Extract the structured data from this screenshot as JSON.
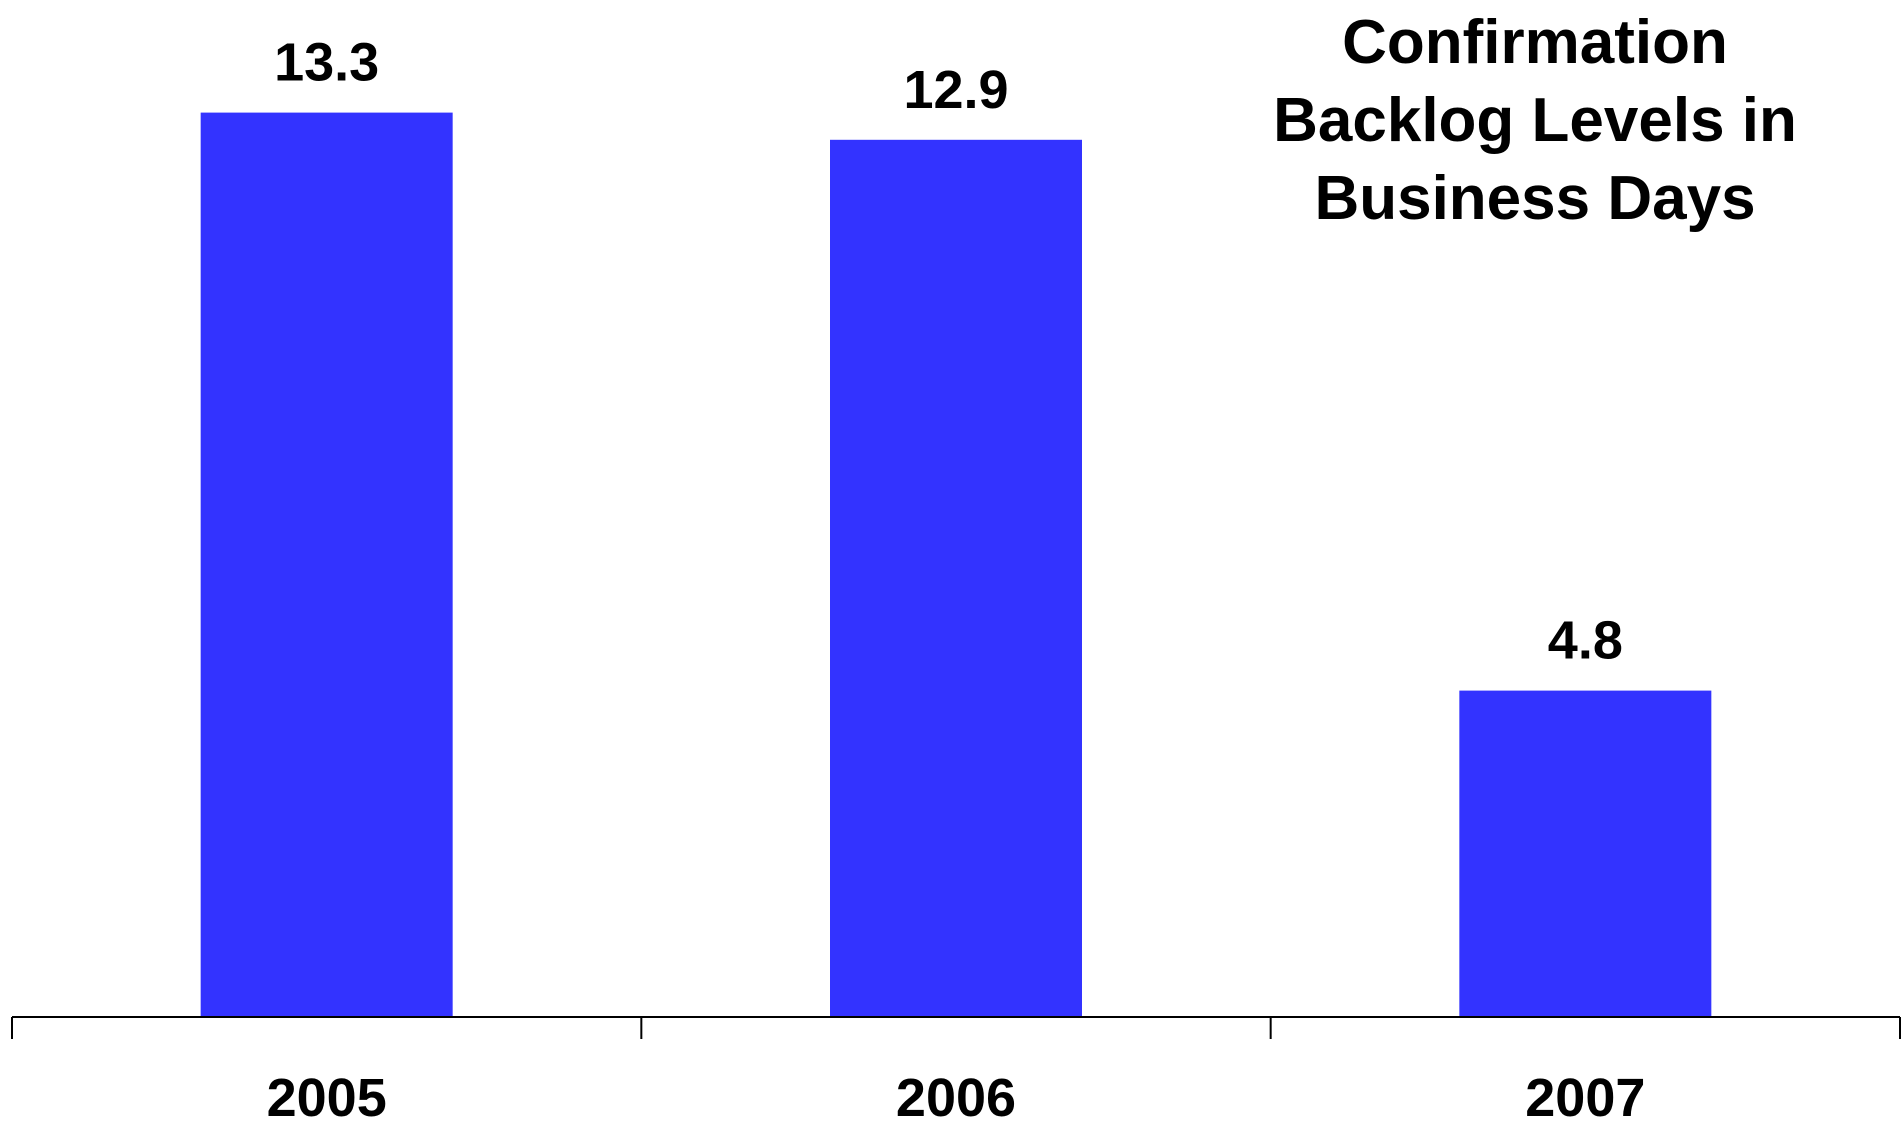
{
  "chart_data": {
    "type": "bar",
    "title_lines": [
      "Confirmation",
      "Backlog Levels in",
      "Business Days"
    ],
    "categories": [
      "2005",
      "2006",
      "2007"
    ],
    "values": [
      13.3,
      12.9,
      4.8
    ],
    "data_labels": [
      "13.3",
      "12.9",
      "4.8"
    ],
    "ylim": [
      0,
      16
    ],
    "xlabel": "",
    "ylabel": "",
    "grid": false,
    "legend": "none",
    "bar_color": "#3333ff",
    "axis_color": "#000000",
    "text_color": "#000000"
  }
}
